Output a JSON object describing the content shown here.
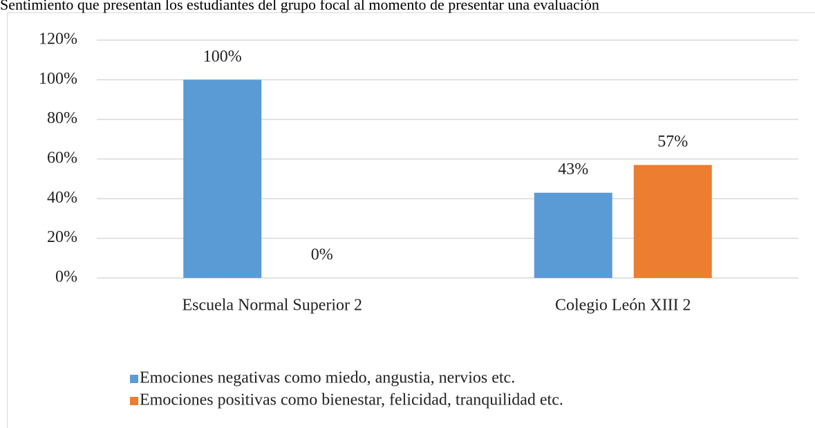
{
  "chart_data": {
    "type": "bar",
    "title": "Sentimiento que presentan los estudiantes del grupo focal al momento de presentar una evaluación",
    "categories": [
      "Escuela Normal Superior 2",
      "Colegio León XIII 2"
    ],
    "series": [
      {
        "name": "Emociones negativas como miedo, angustia, nervios etc.",
        "color": "#5b9bd5",
        "values": [
          100,
          43
        ],
        "value_labels": [
          "100%",
          "43%"
        ]
      },
      {
        "name": "Emociones positivas como bienestar, felicidad, tranquilidad etc.",
        "color": "#ed7d31",
        "values": [
          0,
          57
        ],
        "value_labels": [
          "0%",
          "57%"
        ]
      }
    ],
    "ylim": [
      0,
      120
    ],
    "yticks": [
      {
        "value": 0,
        "label": "0%"
      },
      {
        "value": 20,
        "label": "20%"
      },
      {
        "value": 40,
        "label": "40%"
      },
      {
        "value": 60,
        "label": "60%"
      },
      {
        "value": 80,
        "label": "80%"
      },
      {
        "value": 100,
        "label": "100%"
      },
      {
        "value": 120,
        "label": "120%"
      }
    ],
    "grid": true,
    "legend": "bottom"
  }
}
